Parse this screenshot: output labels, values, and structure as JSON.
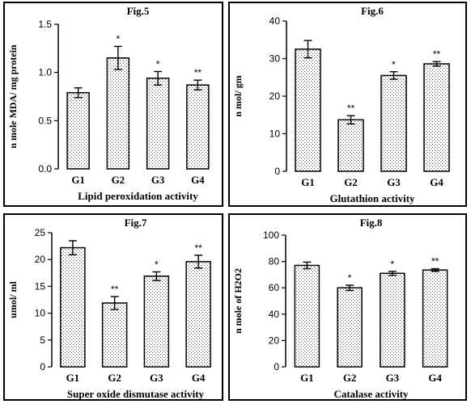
{
  "chart_data": [
    {
      "type": "bar",
      "title": "Fig.5",
      "xlabel": "Lipid peroxidation activity",
      "ylabel": "n mole MDA/ mg protein",
      "categories": [
        "G1",
        "G2",
        "G3",
        "G4"
      ],
      "values": [
        0.79,
        1.15,
        0.94,
        0.87
      ],
      "errors": [
        0.05,
        0.12,
        0.07,
        0.05
      ],
      "annotations": [
        "",
        "*",
        "*",
        "**"
      ],
      "ylim": [
        0,
        1.5
      ],
      "yticks": [
        0.0,
        0.5,
        1.0,
        1.5
      ],
      "ytick_labels": [
        "0.0",
        "0.5",
        "1.0",
        "1.5"
      ]
    },
    {
      "type": "bar",
      "title": "Fig.6",
      "xlabel": "Glutathion activity",
      "ylabel": "n mol/ gm",
      "categories": [
        "G1",
        "G2",
        "G3",
        "G4"
      ],
      "values": [
        32.5,
        13.7,
        25.5,
        28.6
      ],
      "errors": [
        2.3,
        1.1,
        1.0,
        0.6
      ],
      "annotations": [
        "",
        "**",
        "*",
        "**"
      ],
      "ylim": [
        0,
        40
      ],
      "yticks": [
        0,
        10,
        20,
        30,
        40
      ],
      "ytick_labels": [
        "0",
        "10",
        "20",
        "30",
        "40"
      ]
    },
    {
      "type": "bar",
      "title": "Fig.7",
      "xlabel": "Super oxide dismutase activity",
      "ylabel": "umol/ ml",
      "categories": [
        "G1",
        "G2",
        "G3",
        "G4"
      ],
      "values": [
        22.2,
        11.9,
        16.9,
        19.6
      ],
      "errors": [
        1.3,
        1.2,
        0.8,
        1.2
      ],
      "annotations": [
        "",
        "**",
        "*",
        "**"
      ],
      "ylim": [
        0,
        25
      ],
      "yticks": [
        0,
        5,
        10,
        15,
        20,
        25
      ],
      "ytick_labels": [
        "0",
        "5",
        "10",
        "15",
        "20",
        "25"
      ]
    },
    {
      "type": "bar",
      "title": "Fig.8",
      "xlabel": "Catalase activity",
      "ylabel": "n mole of H2O2",
      "categories": [
        "G1",
        "G2",
        "G3",
        "G4"
      ],
      "values": [
        77,
        60,
        71,
        73.5
      ],
      "errors": [
        2.5,
        2.0,
        1.5,
        1.0
      ],
      "annotations": [
        "",
        "*",
        "*",
        "**"
      ],
      "ylim": [
        0,
        100
      ],
      "yticks": [
        0,
        20,
        40,
        60,
        80,
        100
      ],
      "ytick_labels": [
        "0",
        "20",
        "40",
        "60",
        "80",
        "100"
      ]
    }
  ]
}
